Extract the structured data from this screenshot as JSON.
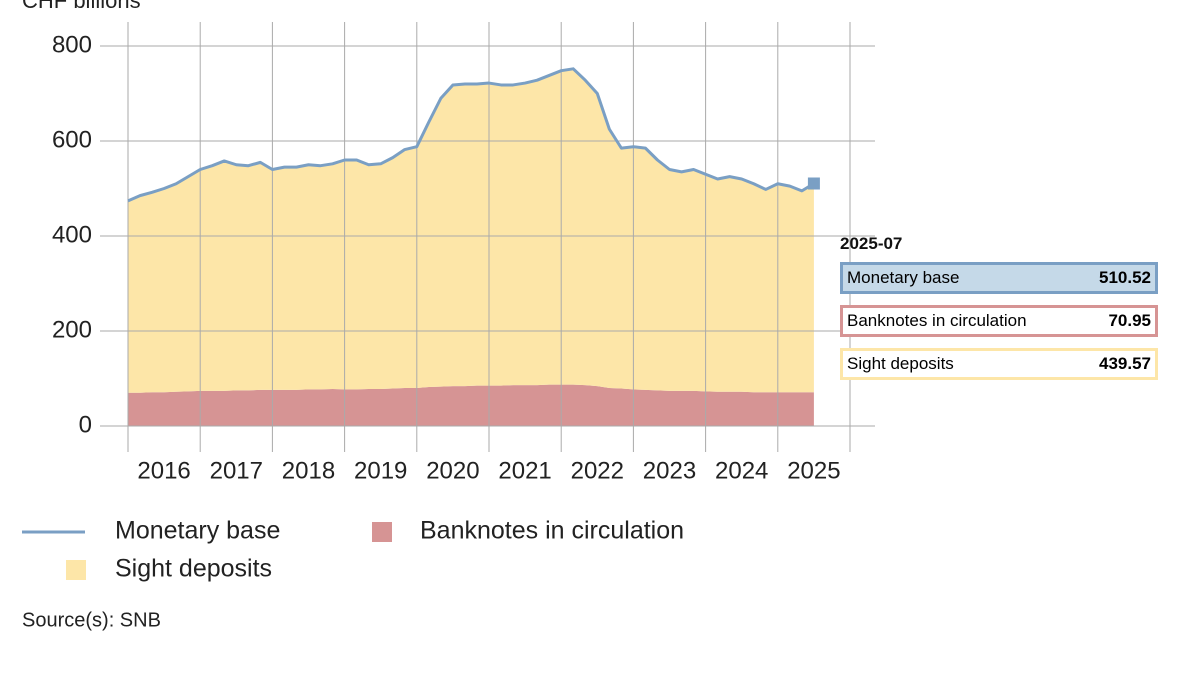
{
  "chart_data": {
    "type": "area",
    "y_label": "CHF billions",
    "x": [
      "2016-01",
      "2016-03",
      "2016-05",
      "2016-07",
      "2016-09",
      "2016-11",
      "2017-01",
      "2017-03",
      "2017-05",
      "2017-07",
      "2017-09",
      "2017-11",
      "2018-01",
      "2018-03",
      "2018-05",
      "2018-07",
      "2018-09",
      "2018-11",
      "2019-01",
      "2019-03",
      "2019-05",
      "2019-07",
      "2019-09",
      "2019-11",
      "2020-01",
      "2020-03",
      "2020-05",
      "2020-07",
      "2020-09",
      "2020-11",
      "2021-01",
      "2021-03",
      "2021-05",
      "2021-07",
      "2021-09",
      "2021-11",
      "2022-01",
      "2022-03",
      "2022-05",
      "2022-07",
      "2022-09",
      "2022-11",
      "2023-01",
      "2023-03",
      "2023-05",
      "2023-07",
      "2023-09",
      "2023-11",
      "2024-01",
      "2024-03",
      "2024-05",
      "2024-07",
      "2024-09",
      "2024-11",
      "2025-01",
      "2025-03",
      "2025-05",
      "2025-07"
    ],
    "series": [
      {
        "name": "Monetary base",
        "type": "line",
        "color": "#7a9fc4",
        "values": [
          474,
          485,
          492,
          500,
          510,
          525,
          540,
          548,
          558,
          550,
          548,
          555,
          540,
          545,
          545,
          550,
          548,
          552,
          560,
          560,
          550,
          552,
          565,
          582,
          588,
          640,
          690,
          718,
          720,
          720,
          722,
          718,
          718,
          722,
          728,
          738,
          748,
          752,
          728,
          700,
          625,
          585,
          588,
          585,
          560,
          540,
          535,
          540,
          530,
          520,
          525,
          520,
          510,
          498,
          510,
          505,
          495,
          510.52
        ]
      },
      {
        "name": "Banknotes in circulation",
        "type": "area",
        "color": "#d69494",
        "values": [
          70,
          70,
          71,
          71,
          72,
          73,
          74,
          74,
          74,
          75,
          75,
          76,
          76,
          76,
          76,
          77,
          77,
          78,
          77,
          77,
          78,
          78,
          79,
          80,
          80,
          82,
          83,
          84,
          84,
          85,
          85,
          85,
          86,
          86,
          86,
          87,
          87,
          87,
          86,
          84,
          80,
          79,
          77,
          76,
          75,
          74,
          74,
          74,
          73,
          72,
          72,
          72,
          71,
          71,
          71,
          71,
          71,
          70.95
        ]
      },
      {
        "name": "Sight deposits",
        "type": "area",
        "color": "#fde6a8",
        "values": [
          404,
          415,
          421,
          429,
          438,
          452,
          466,
          474,
          484,
          475,
          473,
          479,
          464,
          469,
          469,
          473,
          471,
          474,
          483,
          483,
          472,
          474,
          486,
          502,
          508,
          558,
          607,
          634,
          636,
          635,
          637,
          633,
          632,
          636,
          642,
          651,
          661,
          665,
          642,
          616,
          545,
          506,
          511,
          509,
          485,
          466,
          461,
          466,
          457,
          448,
          453,
          448,
          439,
          427,
          439,
          434,
          424,
          439.57
        ]
      }
    ],
    "xlim": [
      2016,
      2026
    ],
    "xticks": [
      2016,
      2017,
      2018,
      2019,
      2020,
      2021,
      2022,
      2023,
      2024,
      2025
    ],
    "ylim": [
      0,
      800
    ],
    "yticks": [
      0,
      200,
      400,
      600,
      800
    ],
    "grid": true,
    "source": "Source(s): SNB"
  }
}
